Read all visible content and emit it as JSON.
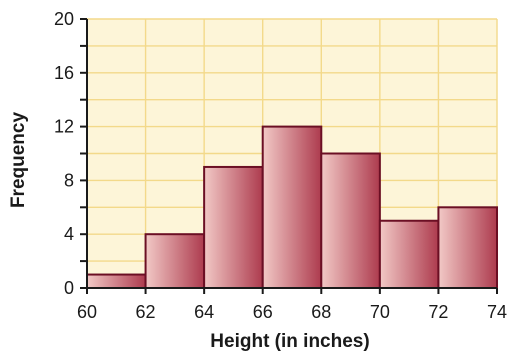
{
  "chart_data": {
    "type": "bar",
    "subtype": "histogram",
    "bin_edges": [
      60,
      62,
      64,
      66,
      68,
      70,
      72,
      74
    ],
    "values": [
      1,
      4,
      9,
      12,
      10,
      5,
      6
    ],
    "xlabel": "Height (in inches)",
    "ylabel": "Frequency",
    "xlim": [
      60,
      74
    ],
    "ylim": [
      0,
      20
    ],
    "x_ticks": [
      "60",
      "62",
      "64",
      "66",
      "68",
      "70",
      "72",
      "74"
    ],
    "y_ticks": [
      "0",
      "4",
      "8",
      "12",
      "16",
      "20"
    ],
    "y_minor_step": 2,
    "grid": true,
    "colors": {
      "plot_background": "#fdf5d8",
      "grid": "#f3d98a",
      "bar_light": "#f2c9c6",
      "bar_dark": "#ad3b4e",
      "bar_edge": "#6b0f24",
      "axis": "#1a1a1a"
    }
  }
}
